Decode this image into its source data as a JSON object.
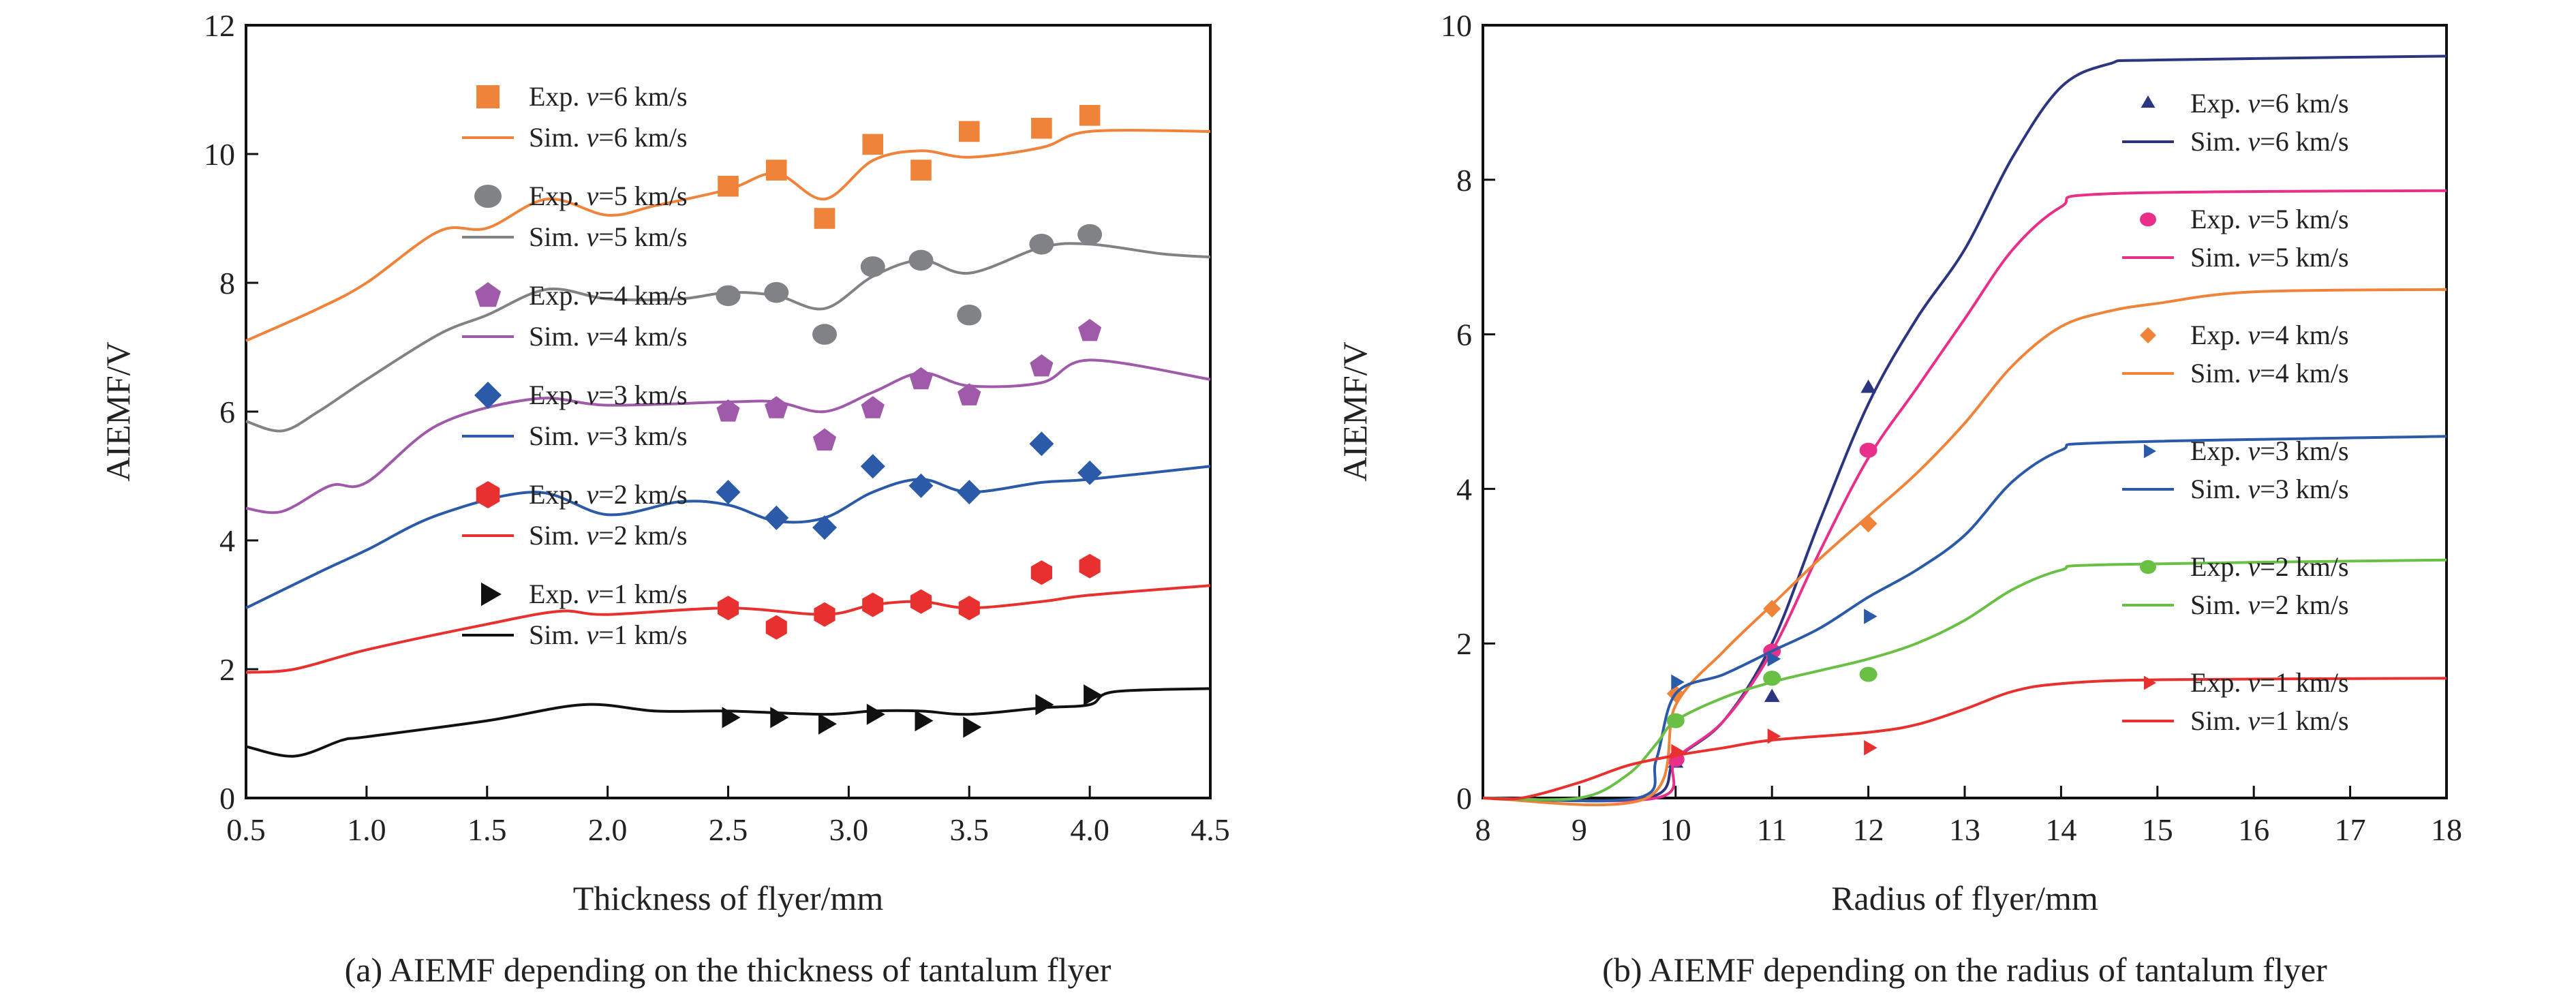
{
  "chart_data": [
    {
      "type": "scatter+line",
      "caption": "(a) AIEMF depending on the thickness of tantalum flyer",
      "xlabel": "Thickness of flyer/mm",
      "ylabel": "AIEMF/V",
      "xlim": [
        0.5,
        4.5
      ],
      "ylim": [
        0,
        12
      ],
      "xticks": [
        "0.5",
        "1.0",
        "1.5",
        "2.0",
        "2.5",
        "3.0",
        "3.5",
        "4.0",
        "4.5"
      ],
      "yticks": [
        "0",
        "2",
        "4",
        "6",
        "8",
        "10",
        "12"
      ],
      "grid": false,
      "legend_placement": "left-inside",
      "exp_x": [
        2.5,
        2.7,
        2.9,
        3.1,
        3.3,
        3.5,
        3.8,
        4.0
      ],
      "series": [
        {
          "v": "6",
          "exp_label": "Exp. ",
          "sim_label": "Sim. ",
          "italic": "v",
          "unit": "=6 km/s",
          "color": "#f0833a",
          "marker": "square",
          "exp": [
            9.5,
            9.75,
            9.0,
            10.15,
            9.75,
            10.35,
            10.4,
            10.6
          ],
          "sim": [
            [
              0.5,
              7.1
            ],
            [
              0.8,
              7.6
            ],
            [
              1.0,
              8.0
            ],
            [
              1.3,
              8.8
            ],
            [
              1.5,
              8.85
            ],
            [
              1.75,
              9.3
            ],
            [
              2.0,
              9.05
            ],
            [
              2.2,
              9.2
            ],
            [
              2.5,
              9.45
            ],
            [
              2.7,
              9.7
            ],
            [
              2.9,
              9.3
            ],
            [
              3.1,
              9.9
            ],
            [
              3.3,
              10.05
            ],
            [
              3.5,
              9.95
            ],
            [
              3.8,
              10.1
            ],
            [
              4.0,
              10.35
            ],
            [
              4.5,
              10.35
            ]
          ]
        },
        {
          "v": "5",
          "exp_label": "Exp. ",
          "sim_label": "Sim. ",
          "italic": "v",
          "unit": "=5 km/s",
          "color": "#808285",
          "marker": "circle",
          "exp": [
            7.8,
            7.85,
            7.2,
            8.25,
            8.35,
            7.5,
            8.6,
            8.75
          ],
          "sim": [
            [
              0.5,
              5.85
            ],
            [
              0.65,
              5.7
            ],
            [
              0.8,
              6.0
            ],
            [
              1.0,
              6.5
            ],
            [
              1.3,
              7.2
            ],
            [
              1.5,
              7.5
            ],
            [
              1.75,
              7.9
            ],
            [
              2.0,
              7.75
            ],
            [
              2.3,
              7.75
            ],
            [
              2.5,
              7.85
            ],
            [
              2.7,
              7.8
            ],
            [
              2.9,
              7.6
            ],
            [
              3.1,
              8.1
            ],
            [
              3.3,
              8.35
            ],
            [
              3.5,
              8.15
            ],
            [
              3.8,
              8.55
            ],
            [
              4.0,
              8.6
            ],
            [
              4.3,
              8.45
            ],
            [
              4.5,
              8.4
            ]
          ]
        },
        {
          "v": "4",
          "exp_label": "Exp. ",
          "sim_label": "Sim. ",
          "italic": "v",
          "unit": "=4 km/s",
          "color": "#a05aaa",
          "marker": "pentagon",
          "exp": [
            6.0,
            6.05,
            5.55,
            6.05,
            6.5,
            6.25,
            6.7,
            7.25
          ],
          "sim": [
            [
              0.5,
              4.5
            ],
            [
              0.65,
              4.45
            ],
            [
              0.85,
              4.85
            ],
            [
              1.0,
              4.9
            ],
            [
              1.3,
              5.8
            ],
            [
              1.7,
              6.2
            ],
            [
              2.0,
              6.1
            ],
            [
              2.5,
              6.15
            ],
            [
              2.7,
              6.15
            ],
            [
              2.9,
              6.0
            ],
            [
              3.1,
              6.3
            ],
            [
              3.3,
              6.6
            ],
            [
              3.5,
              6.4
            ],
            [
              3.8,
              6.45
            ],
            [
              4.0,
              6.8
            ],
            [
              4.5,
              6.5
            ]
          ]
        },
        {
          "v": "3",
          "exp_label": "Exp. ",
          "sim_label": "Sim. ",
          "italic": "v",
          "unit": "=3 km/s",
          "color": "#2b5aa8",
          "marker": "diamond",
          "exp": [
            4.75,
            4.35,
            4.2,
            5.15,
            4.85,
            4.75,
            5.5,
            5.05
          ],
          "sim": [
            [
              0.5,
              2.95
            ],
            [
              0.8,
              3.5
            ],
            [
              1.0,
              3.85
            ],
            [
              1.3,
              4.4
            ],
            [
              1.7,
              4.75
            ],
            [
              2.0,
              4.4
            ],
            [
              2.3,
              4.6
            ],
            [
              2.5,
              4.55
            ],
            [
              2.7,
              4.3
            ],
            [
              2.9,
              4.35
            ],
            [
              3.1,
              4.75
            ],
            [
              3.3,
              4.95
            ],
            [
              3.5,
              4.75
            ],
            [
              3.8,
              4.9
            ],
            [
              4.0,
              4.95
            ],
            [
              4.5,
              5.15
            ]
          ]
        },
        {
          "v": "2",
          "exp_label": "Exp. ",
          "sim_label": "Sim. ",
          "italic": "v",
          "unit": "=2 km/s",
          "color": "#e8312e",
          "marker": "hexagon",
          "exp": [
            2.95,
            2.65,
            2.85,
            3.0,
            3.05,
            2.95,
            3.5,
            3.6
          ],
          "sim": [
            [
              0.5,
              1.95
            ],
            [
              0.7,
              2.0
            ],
            [
              1.0,
              2.3
            ],
            [
              1.5,
              2.7
            ],
            [
              1.8,
              2.9
            ],
            [
              2.0,
              2.85
            ],
            [
              2.5,
              2.95
            ],
            [
              2.9,
              2.85
            ],
            [
              3.1,
              3.0
            ],
            [
              3.3,
              3.05
            ],
            [
              3.5,
              2.95
            ],
            [
              3.8,
              3.05
            ],
            [
              4.0,
              3.15
            ],
            [
              4.5,
              3.3
            ]
          ]
        },
        {
          "v": "1",
          "exp_label": "Exp. ",
          "sim_label": "Sim. ",
          "italic": "v",
          "unit": "=1 km/s",
          "color": "#111111",
          "marker": "triangle-right",
          "exp": [
            1.25,
            1.25,
            1.15,
            1.3,
            1.2,
            1.1,
            1.45,
            1.6
          ],
          "sim": [
            [
              0.5,
              0.8
            ],
            [
              0.7,
              0.65
            ],
            [
              0.9,
              0.9
            ],
            [
              1.0,
              0.95
            ],
            [
              1.5,
              1.2
            ],
            [
              1.9,
              1.45
            ],
            [
              2.2,
              1.35
            ],
            [
              2.5,
              1.35
            ],
            [
              2.9,
              1.3
            ],
            [
              3.1,
              1.35
            ],
            [
              3.3,
              1.35
            ],
            [
              3.5,
              1.3
            ],
            [
              3.8,
              1.4
            ],
            [
              4.0,
              1.45
            ],
            [
              4.1,
              1.65
            ],
            [
              4.5,
              1.7
            ]
          ]
        }
      ]
    },
    {
      "type": "scatter+line",
      "caption": "(b) AIEMF depending on the radius of tantalum flyer",
      "xlabel": "Radius of flyer/mm",
      "ylabel": "AIEMF/V",
      "xlim": [
        8,
        18
      ],
      "ylim": [
        0,
        10
      ],
      "xticks": [
        "8",
        "9",
        "10",
        "11",
        "12",
        "13",
        "14",
        "15",
        "16",
        "17",
        "18"
      ],
      "yticks": [
        "0",
        "2",
        "4",
        "6",
        "8",
        "10"
      ],
      "grid": false,
      "legend_placement": "right-inside",
      "exp_x": [
        10,
        11,
        12
      ],
      "series": [
        {
          "v": "6",
          "exp_label": "Exp. ",
          "sim_label": "Sim. ",
          "italic": "v",
          "unit": "=6 km/s",
          "color": "#2b3580",
          "marker": "triangle-up",
          "exp": [
            0.45,
            1.3,
            5.3
          ],
          "sim": [
            [
              8,
              0
            ],
            [
              9.7,
              0
            ],
            [
              10,
              0.5
            ],
            [
              10.5,
              1.0
            ],
            [
              11,
              2.0
            ],
            [
              11.5,
              3.6
            ],
            [
              12,
              5.1
            ],
            [
              12.5,
              6.2
            ],
            [
              13,
              7.1
            ],
            [
              13.5,
              8.3
            ],
            [
              14,
              9.2
            ],
            [
              14.5,
              9.5
            ],
            [
              15,
              9.55
            ],
            [
              18,
              9.6
            ]
          ]
        },
        {
          "v": "5",
          "exp_label": "Exp. ",
          "sim_label": "Sim. ",
          "italic": "v",
          "unit": "=5 km/s",
          "color": "#e8308a",
          "marker": "circle",
          "exp": [
            0.5,
            1.9,
            4.5
          ],
          "sim": [
            [
              8,
              0
            ],
            [
              9.8,
              0
            ],
            [
              10,
              0.5
            ],
            [
              10.5,
              1.0
            ],
            [
              11,
              1.9
            ],
            [
              11.5,
              3.2
            ],
            [
              12,
              4.4
            ],
            [
              12.5,
              5.3
            ],
            [
              13,
              6.2
            ],
            [
              13.5,
              7.1
            ],
            [
              14,
              7.65
            ],
            [
              14.5,
              7.82
            ],
            [
              18,
              7.86
            ]
          ]
        },
        {
          "v": "4",
          "exp_label": "Exp. ",
          "sim_label": "Sim. ",
          "italic": "v",
          "unit": "=4 km/s",
          "color": "#f0833a",
          "marker": "diamond",
          "exp": [
            1.35,
            2.45,
            3.55
          ],
          "sim": [
            [
              8,
              0
            ],
            [
              9.7,
              0
            ],
            [
              10,
              1.2
            ],
            [
              10.5,
              1.9
            ],
            [
              11,
              2.5
            ],
            [
              11.5,
              3.1
            ],
            [
              12,
              3.65
            ],
            [
              12.5,
              4.2
            ],
            [
              13,
              4.85
            ],
            [
              13.5,
              5.6
            ],
            [
              14,
              6.1
            ],
            [
              14.5,
              6.3
            ],
            [
              15,
              6.4
            ],
            [
              16,
              6.55
            ],
            [
              18,
              6.58
            ]
          ]
        },
        {
          "v": "3",
          "exp_label": "Exp. ",
          "sim_label": "Sim. ",
          "italic": "v",
          "unit": "=3 km/s",
          "color": "#2b5aa8",
          "marker": "triangle-right",
          "exp": [
            1.5,
            1.8,
            2.35
          ],
          "sim": [
            [
              8,
              0
            ],
            [
              9.6,
              0
            ],
            [
              9.8,
              0.5
            ],
            [
              10,
              1.35
            ],
            [
              10.5,
              1.6
            ],
            [
              11,
              1.9
            ],
            [
              11.5,
              2.2
            ],
            [
              12,
              2.6
            ],
            [
              12.5,
              2.95
            ],
            [
              13,
              3.4
            ],
            [
              13.5,
              4.1
            ],
            [
              14,
              4.5
            ],
            [
              14.5,
              4.6
            ],
            [
              18,
              4.68
            ]
          ]
        },
        {
          "v": "2",
          "exp_label": "Exp. ",
          "sim_label": "Sim. ",
          "italic": "v",
          "unit": "=2 km/s",
          "color": "#6abf45",
          "marker": "circle",
          "exp": [
            1.0,
            1.55,
            1.6
          ],
          "sim": [
            [
              8,
              0
            ],
            [
              9,
              0
            ],
            [
              9.5,
              0.3
            ],
            [
              9.8,
              0.7
            ],
            [
              10,
              1.0
            ],
            [
              10.5,
              1.3
            ],
            [
              11,
              1.5
            ],
            [
              11.5,
              1.65
            ],
            [
              12,
              1.8
            ],
            [
              12.5,
              2.0
            ],
            [
              13,
              2.3
            ],
            [
              13.5,
              2.7
            ],
            [
              14,
              2.95
            ],
            [
              14.5,
              3.02
            ],
            [
              18,
              3.08
            ]
          ]
        },
        {
          "v": "1",
          "exp_label": "Exp. ",
          "sim_label": "Sim. ",
          "italic": "v",
          "unit": "=1 km/s",
          "color": "#e8312e",
          "marker": "triangle-right",
          "exp": [
            0.6,
            0.8,
            0.65
          ],
          "sim": [
            [
              8,
              0
            ],
            [
              8.4,
              0
            ],
            [
              9,
              0.2
            ],
            [
              9.5,
              0.42
            ],
            [
              10,
              0.55
            ],
            [
              10.5,
              0.65
            ],
            [
              11,
              0.75
            ],
            [
              12,
              0.85
            ],
            [
              12.5,
              0.95
            ],
            [
              13,
              1.15
            ],
            [
              13.5,
              1.38
            ],
            [
              14,
              1.48
            ],
            [
              15,
              1.53
            ],
            [
              18,
              1.55
            ]
          ]
        }
      ]
    }
  ]
}
